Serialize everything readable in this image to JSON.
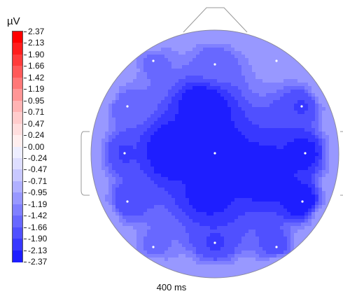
{
  "chart_data": {
    "type": "heatmap",
    "subtype": "eeg-scalp-topography",
    "unit_label": "µV",
    "time_label": "400 ms",
    "colorbar": {
      "ticks": [
        "2.37",
        "2.13",
        "1.90",
        "1.66",
        "1.42",
        "1.19",
        "0.95",
        "0.71",
        "0.47",
        "0.24",
        "0.00",
        "-0.24",
        "-0.47",
        "-0.71",
        "-0.95",
        "-1.19",
        "-1.42",
        "-1.66",
        "-1.90",
        "-2.13",
        "-2.37"
      ],
      "range": [
        -2.37,
        2.37
      ],
      "colors": [
        "#ff0000",
        "#ff1e1e",
        "#ff3c3c",
        "#ff5a5a",
        "#ff7878",
        "#ff9696",
        "#ffb4b4",
        "#ffcccc",
        "#ffdede",
        "#ffeeee",
        "#eeeeff",
        "#dedeff",
        "#c8c8ff",
        "#b0b0ff",
        "#9898ff",
        "#8080ff",
        "#6868ff",
        "#5050ff",
        "#3838ff",
        "#1e1eff"
      ]
    },
    "electrode_values": [
      {
        "pos": "left-front",
        "value": -1.5
      },
      {
        "pos": "front-center",
        "value": -1.6
      },
      {
        "pos": "right-front",
        "value": -1.1
      },
      {
        "pos": "left-upper",
        "value": -1.6
      },
      {
        "pos": "right-upper",
        "value": -1.9
      },
      {
        "pos": "left",
        "value": -1.9
      },
      {
        "pos": "center",
        "value": -2.3
      },
      {
        "pos": "right",
        "value": -2.2
      },
      {
        "pos": "left-lower",
        "value": -1.8
      },
      {
        "pos": "right-lower",
        "value": -2.3
      },
      {
        "pos": "left-back",
        "value": -1.5
      },
      {
        "pos": "back-center",
        "value": -1.9
      },
      {
        "pos": "right-back",
        "value": -1.8
      }
    ],
    "extra_minima": [
      {
        "pos": "center-left-deep",
        "value": -2.35
      },
      {
        "pos": "center-upper-deep",
        "value": -2.3
      },
      {
        "pos": "right-center-deep",
        "value": -2.3
      },
      {
        "pos": "center-lower-deep",
        "value": -2.2
      }
    ],
    "rim_value": -1.0
  }
}
